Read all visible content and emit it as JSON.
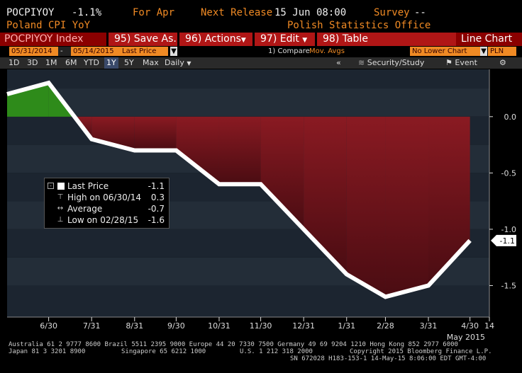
{
  "header": {
    "ticker": "POCPIYOY",
    "change": "-1.1%",
    "period": "For Apr",
    "next_release_label": "Next Release",
    "next_release_value": "15 Jun 08:00",
    "survey_label": "Survey",
    "survey_value": "--",
    "subtitle": "Poland CPI YoY",
    "source": "Polish Statistics Office"
  },
  "menu": {
    "index_field": "POCPIYOY Index",
    "save": "95) Save As...",
    "actions": "96) Actions",
    "edit": "97) Edit",
    "table": "98) Table",
    "chart_type": "Line Chart"
  },
  "controls": {
    "start_date": "05/31/2014",
    "dash": "-",
    "end_date": "05/14/2015",
    "price_field": "Last Price",
    "compare_label": "1) Compare",
    "compare_value": "Mov. Avgs",
    "lower_chart": "No Lower Chart",
    "currency": "PLN"
  },
  "toolbar": {
    "ranges": [
      "1D",
      "3D",
      "1M",
      "6M",
      "YTD",
      "1Y",
      "5Y",
      "Max"
    ],
    "selected_range": "1Y",
    "frequency": "Daily",
    "security_study": "Security/Study",
    "event": "Event",
    "collapse": "«",
    "gear": "⚙"
  },
  "legend": {
    "last_label": "Last Price",
    "last_value": "-1.1",
    "high_label": "High on 06/30/14",
    "high_value": "0.3",
    "avg_label": "Average",
    "avg_value": "-0.7",
    "low_label": "Low on 02/28/15",
    "low_value": "-1.6"
  },
  "footer": {
    "line1": "Australia 61 2 9777 8600 Brazil 5511 2395 9000 Europe 44 20 7330 7500 Germany 49 69 9204 1210 Hong Kong 852 2977 6000",
    "line2a": "Japan 81 3 3201 8900",
    "line2b": "Singapore 65 6212 1000",
    "line2c": "U.S. 1 212 318 2000",
    "line2d": "Copyright 2015 Bloomberg Finance L.P.",
    "line3": "SN 672028 H183-153-1 14-May-15  8:06:00 EDT  GMT-4:00"
  },
  "colors": {
    "background": "#000000",
    "plot_band_a": "#1c2530",
    "plot_band_b": "#232d38",
    "line": "#ffffff",
    "fill_positive": "#2e8b1a",
    "fill_negative": "#8a1a22",
    "accent": "#f08a24",
    "menu": "#8b0000"
  },
  "chart_data": {
    "type": "area",
    "series": [
      {
        "name": "POCPIYOY Index",
        "x": [
          "2014-05-31",
          "2014-06-30",
          "2014-07-31",
          "2014-08-31",
          "2014-09-30",
          "2014-10-31",
          "2014-11-30",
          "2014-12-31",
          "2015-01-31",
          "2015-02-28",
          "2015-03-31",
          "2015-04-30"
        ],
        "values": [
          0.2,
          0.3,
          -0.2,
          -0.3,
          -0.3,
          -0.6,
          -0.6,
          -1.0,
          -1.4,
          -1.6,
          -1.5,
          -1.1
        ]
      }
    ],
    "x_tick_labels": [
      "6/30",
      "7/31",
      "8/31",
      "9/30",
      "10/31",
      "11/30",
      "12/31",
      "1/31",
      "2/28",
      "3/31",
      "4/30",
      "14"
    ],
    "x_period_label": "May 2015",
    "y_ticks": [
      0.0,
      -0.5,
      -1.0,
      -1.5
    ],
    "y_tick_labels": [
      "0.0",
      "-0.5",
      "-1.0",
      "-1.5"
    ],
    "last_value_label": "-1.1",
    "ylim": [
      -1.78,
      0.42
    ],
    "xlim": [
      "2014-05-31",
      "2015-05-14"
    ],
    "fill_baseline": 0.0,
    "grid": false,
    "banded_background": true,
    "title": "",
    "xlabel": "",
    "ylabel": ""
  }
}
